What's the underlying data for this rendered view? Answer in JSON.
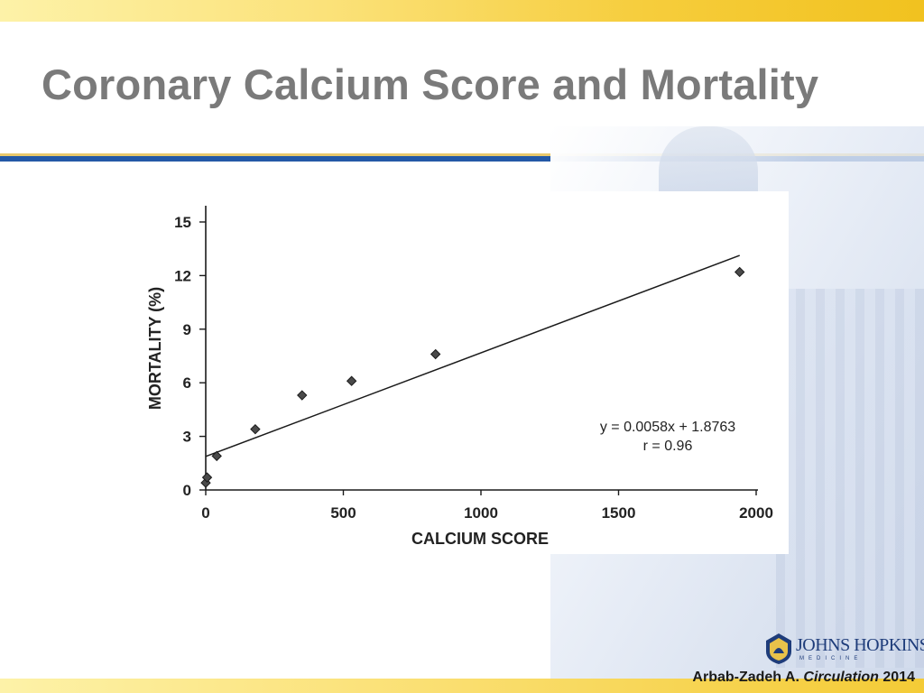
{
  "slide": {
    "title": "Coronary Calcium Score and Mortality",
    "citation": {
      "author": "Arbab-Zadeh A.",
      "journal": "Circulation",
      "year": "2014"
    },
    "logo": {
      "name": "JOHNS HOPKINS",
      "sub": "MEDICINE"
    },
    "colors": {
      "title": "#7a7a7a",
      "rule": "#2358a6",
      "band": "#f6cd3c"
    }
  },
  "chart_data": {
    "type": "scatter",
    "title": "",
    "xlabel": "CALCIUM SCORE",
    "ylabel": "MORTALITY (%)",
    "xlim": [
      0,
      2000
    ],
    "ylim": [
      0,
      15
    ],
    "xticks": [
      0,
      500,
      1000,
      1500,
      2000
    ],
    "yticks": [
      0,
      3,
      6,
      9,
      12,
      15
    ],
    "grid": false,
    "series": [
      {
        "marker": "diamond",
        "x": [
          0,
          5,
          40,
          180,
          350,
          530,
          835,
          1940
        ],
        "y": [
          0.4,
          0.7,
          1.9,
          3.4,
          5.3,
          6.1,
          7.6,
          12.2
        ]
      }
    ],
    "trendline": {
      "slope": 0.0058,
      "intercept": 1.8763,
      "x_range": [
        0,
        1940
      ]
    },
    "annotations": [
      "y = 0.0058x + 1.8763",
      "r = 0.96"
    ]
  }
}
